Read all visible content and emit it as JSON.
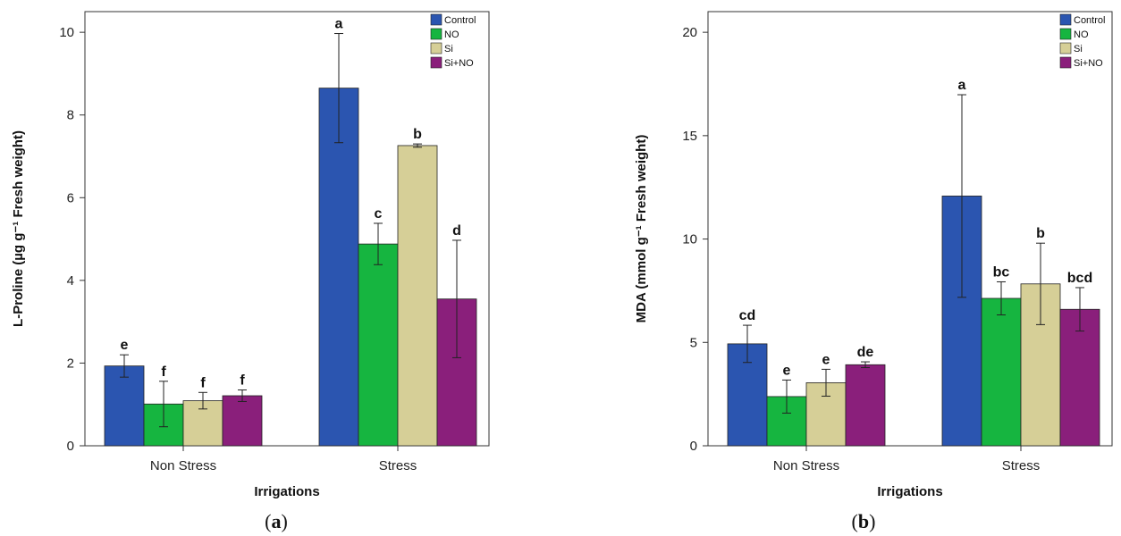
{
  "figure": {
    "panels": [
      {
        "label_open": "(",
        "label_letter": "a",
        "label_close": ")"
      },
      {
        "label_open": "(",
        "label_letter": "b",
        "label_close": ")"
      }
    ]
  },
  "colors": {
    "Control": "#2b55b0",
    "NO": "#16b540",
    "Si": "#d6cf97",
    "Si+NO": "#8a1f7b"
  },
  "chart_data": [
    {
      "type": "bar",
      "categories": [
        "Non Stress",
        "Stress"
      ],
      "xlabel": "Irrigations",
      "ylabel": "L-Proline (µg g⁻¹ Fresh weight)",
      "ylim": [
        0,
        10.5
      ],
      "yticks": [
        0,
        2,
        4,
        6,
        8,
        10
      ],
      "legend": "top-right",
      "series": [
        {
          "name": "Control",
          "values": [
            1.93,
            8.65
          ],
          "errors": [
            0.27,
            1.32
          ],
          "letters": [
            "e",
            "a"
          ]
        },
        {
          "name": "NO",
          "values": [
            1.01,
            4.88
          ],
          "errors": [
            0.55,
            0.5
          ],
          "letters": [
            "f",
            "c"
          ]
        },
        {
          "name": "Si",
          "values": [
            1.09,
            7.26
          ],
          "errors": [
            0.2,
            0.04
          ],
          "letters": [
            "f",
            "b"
          ]
        },
        {
          "name": "Si+NO",
          "values": [
            1.21,
            3.55
          ],
          "errors": [
            0.14,
            1.42
          ],
          "letters": [
            "f",
            "d"
          ]
        }
      ]
    },
    {
      "type": "bar",
      "categories": [
        "Non Stress",
        "Stress"
      ],
      "xlabel": "Irrigations",
      "ylabel": "MDA (mmol g⁻¹ Fresh weight)",
      "ylim": [
        0,
        21
      ],
      "yticks": [
        0,
        5,
        10,
        15,
        20
      ],
      "legend": "top-right",
      "series": [
        {
          "name": "Control",
          "values": [
            4.93,
            12.08
          ],
          "errors": [
            0.9,
            4.9
          ],
          "letters": [
            "cd",
            "a"
          ]
        },
        {
          "name": "NO",
          "values": [
            2.38,
            7.13
          ],
          "errors": [
            0.8,
            0.8
          ],
          "letters": [
            "e",
            "bc"
          ]
        },
        {
          "name": "Si",
          "values": [
            3.05,
            7.83
          ],
          "errors": [
            0.65,
            1.97
          ],
          "letters": [
            "e",
            "b"
          ]
        },
        {
          "name": "Si+NO",
          "values": [
            3.92,
            6.6
          ],
          "errors": [
            0.14,
            1.05
          ],
          "letters": [
            "de",
            "bcd"
          ]
        }
      ]
    }
  ]
}
